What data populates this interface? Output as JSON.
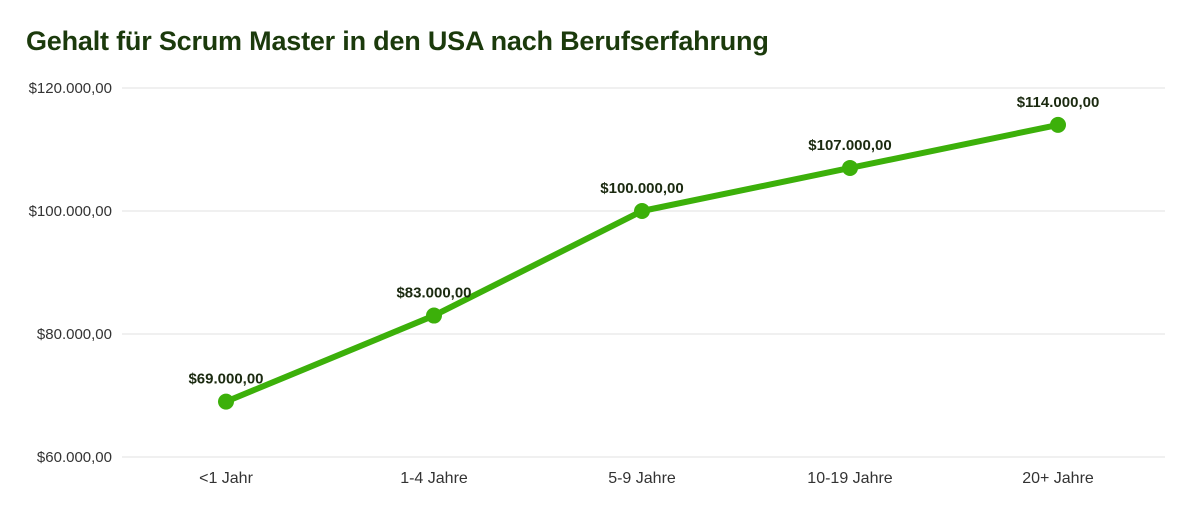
{
  "chart_data": {
    "type": "line",
    "title": "Gehalt für Scrum Master in den USA nach Berufserfahrung",
    "xlabel": "",
    "ylabel": "",
    "categories": [
      "<1 Jahr",
      "1-4 Jahre",
      "5-9 Jahre",
      "10-19 Jahre",
      "20+ Jahre"
    ],
    "values": [
      69000,
      83000,
      100000,
      107000,
      114000
    ],
    "data_labels": [
      "$69.000,00",
      "$83.000,00",
      "$100.000,00",
      "$107.000,00",
      "$114.000,00"
    ],
    "ylim": [
      60000,
      120000
    ],
    "yticks": [
      60000,
      80000,
      100000,
      120000
    ],
    "ytick_labels": [
      "$60.000,00",
      "$80.000,00",
      "$100.000,00",
      "$120.000,00"
    ],
    "grid": true,
    "legend": "none",
    "colors": {
      "line": "#3cb00a",
      "title": "#1b3a0c",
      "grid": "#e0e0e0"
    }
  }
}
